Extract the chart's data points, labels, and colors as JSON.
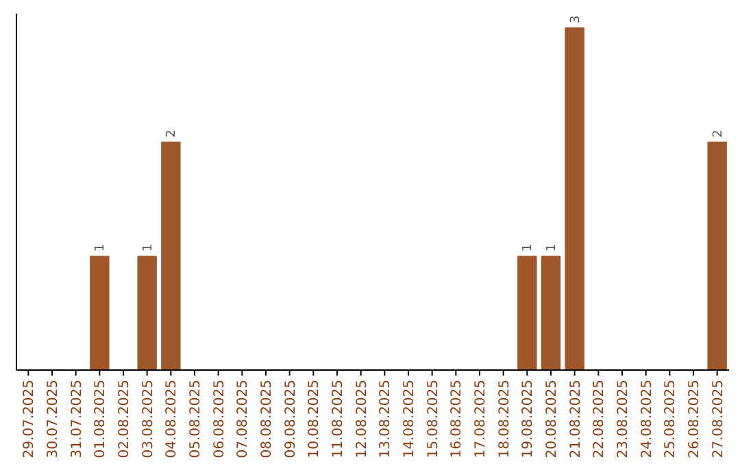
{
  "chart_data": {
    "type": "bar",
    "categories": [
      "29.07.2025",
      "30.07.2025",
      "31.07.2025",
      "01.08.2025",
      "02.08.2025",
      "03.08.2025",
      "04.08.2025",
      "05.08.2025",
      "06.08.2025",
      "07.08.2025",
      "08.08.2025",
      "09.08.2025",
      "10.08.2025",
      "11.08.2025",
      "12.08.2025",
      "13.08.2025",
      "14.08.2025",
      "15.08.2025",
      "16.08.2025",
      "17.08.2025",
      "18.08.2025",
      "19.08.2025",
      "20.08.2025",
      "21.08.2025",
      "22.08.2025",
      "23.08.2025",
      "24.08.2025",
      "25.08.2025",
      "26.08.2025",
      "27.08.2025"
    ],
    "values": [
      0,
      0,
      0,
      1,
      0,
      1,
      2,
      0,
      0,
      0,
      0,
      0,
      0,
      0,
      0,
      0,
      0,
      0,
      0,
      0,
      0,
      1,
      1,
      3,
      0,
      0,
      0,
      0,
      0,
      2
    ],
    "value_labels": [
      null,
      null,
      null,
      "1",
      null,
      "1",
      "2",
      null,
      null,
      null,
      null,
      null,
      null,
      null,
      null,
      null,
      null,
      null,
      null,
      null,
      null,
      "1",
      "1",
      "3",
      null,
      null,
      null,
      null,
      null,
      "2"
    ],
    "color": "#a0572a"
  }
}
